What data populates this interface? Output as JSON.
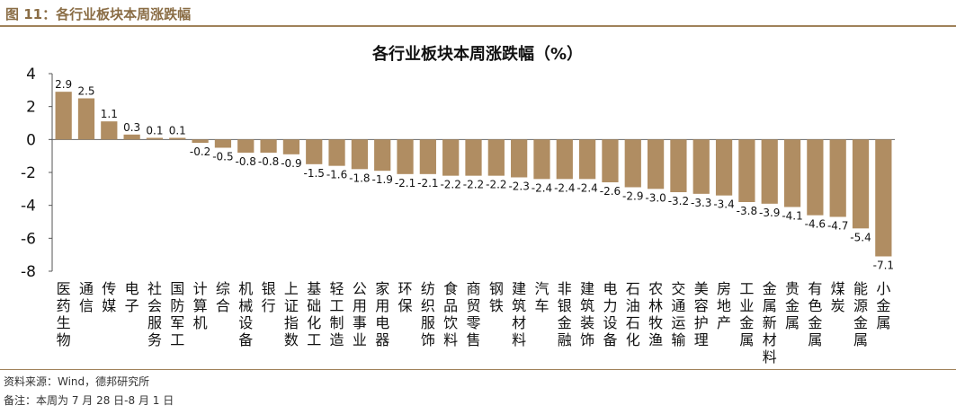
{
  "figure_title": "图 11：各行业板块本周涨跌幅",
  "source_note": "资料来源：Wind，德邦研究所",
  "remark_note": "备注：本周为 7 月 28 日-8 月 1 日",
  "colors": {
    "bar": "#b08d62",
    "header_text": "#8a6d45",
    "rule": "#a0825a"
  },
  "chart_data": {
    "type": "bar",
    "title": "各行业板块本周涨跌幅（%）",
    "xlabel": "",
    "ylabel": "",
    "ylim": [
      -8,
      4
    ],
    "yticks": [
      4,
      2,
      0,
      -2,
      -4,
      -6,
      -8
    ],
    "grid": false,
    "categories": [
      "医药生物",
      "通信",
      "传媒",
      "电子",
      "社会服务",
      "国防军工",
      "计算机",
      "综合",
      "机械设备",
      "银行",
      "上证指数",
      "基础化工",
      "轻工制造",
      "公用事业",
      "家用电器",
      "环保",
      "纺织服饰",
      "食品饮料",
      "商贸零售",
      "钢铁",
      "建筑材料",
      "汽车",
      "非银金融",
      "建筑装饰",
      "电力设备",
      "石油石化",
      "农林牧渔",
      "交通运输",
      "美容护理",
      "房地产",
      "工业金属",
      "金属新材料",
      "贵金属",
      "有色金属",
      "煤炭",
      "能源金属",
      "小金属"
    ],
    "values": [
      2.9,
      2.5,
      1.1,
      0.3,
      0.1,
      0.1,
      -0.2,
      -0.5,
      -0.8,
      -0.8,
      -0.9,
      -1.5,
      -1.6,
      -1.8,
      -1.9,
      -2.1,
      -2.1,
      -2.2,
      -2.2,
      -2.2,
      -2.3,
      -2.4,
      -2.4,
      -2.4,
      -2.6,
      -2.9,
      -3.0,
      -3.2,
      -3.3,
      -3.4,
      -3.8,
      -3.9,
      -4.1,
      -4.6,
      -4.7,
      -5.4,
      -7.1
    ],
    "labels": [
      "2.9",
      "2.5",
      "1.1",
      "0.3",
      "0.1",
      "0.1",
      "-0.2",
      "-0.5",
      "-0.8",
      "-0.8",
      "-0.9",
      "-1.5",
      "-1.6",
      "-1.8",
      "-1.9",
      "-2.1",
      "-2.1",
      "-2.2",
      "-2.2",
      "-2.2",
      "-2.3",
      "-2.4",
      "-2.4",
      "-2.4",
      "-2.6",
      "-2.9",
      "-3.0",
      "-3.2",
      "-3.3",
      "-3.4",
      "-3.8",
      "-3.9",
      "-4.1",
      "-4.6",
      "-4.7",
      "-5.4",
      "-7.1"
    ]
  }
}
